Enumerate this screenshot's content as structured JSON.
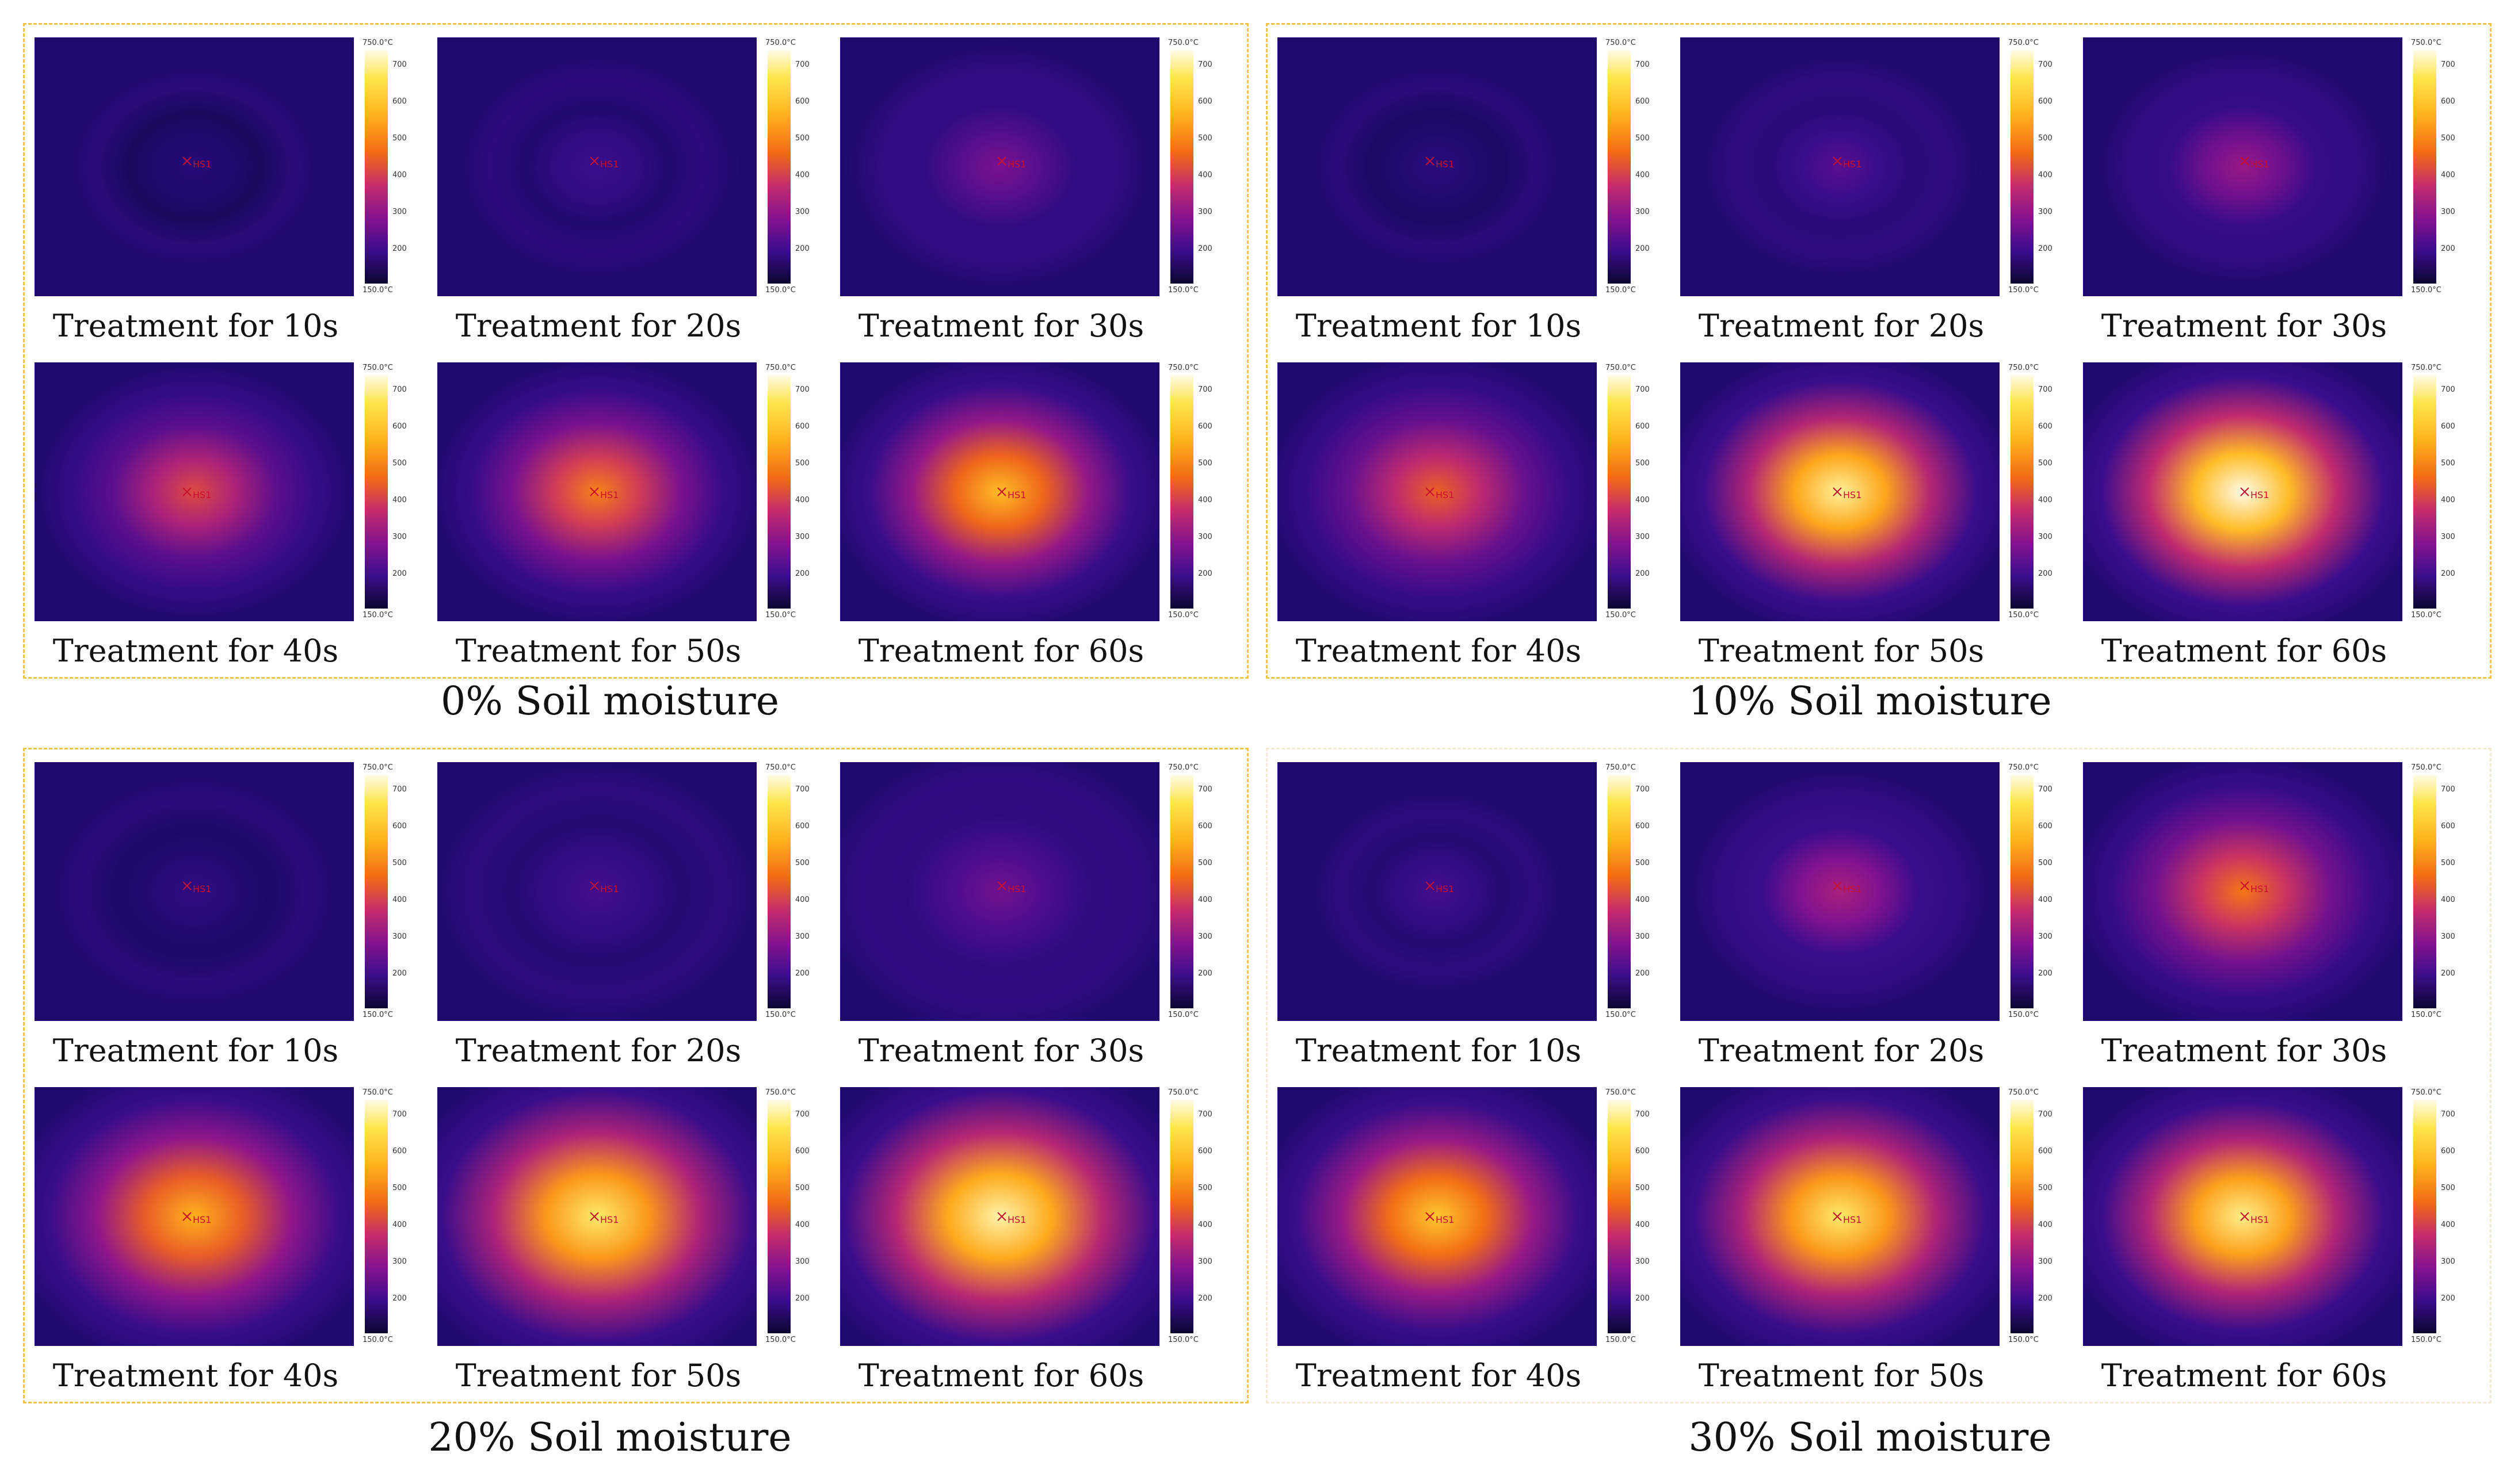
{
  "scale": {
    "top_label": "750.0°C",
    "bottom_label": "150.0°C",
    "ticks": [
      "700",
      "600",
      "500",
      "400",
      "300",
      "200"
    ]
  },
  "marker_label": "HS1",
  "groups": [
    {
      "title": "0% Soil moisture",
      "panels": [
        {
          "caption": "Treatment for 10s",
          "intensity": 0.18,
          "spread": 0.16
        },
        {
          "caption": "Treatment for 20s",
          "intensity": 0.28,
          "spread": 0.2
        },
        {
          "caption": "Treatment for 30s",
          "intensity": 0.4,
          "spread": 0.24
        },
        {
          "caption": "Treatment for 40s",
          "intensity": 0.62,
          "spread": 0.26
        },
        {
          "caption": "Treatment for 50s",
          "intensity": 0.72,
          "spread": 0.28
        },
        {
          "caption": "Treatment for 60s",
          "intensity": 0.82,
          "spread": 0.3
        }
      ]
    },
    {
      "title": "10% Soil moisture",
      "panels": [
        {
          "caption": "Treatment for 10s",
          "intensity": 0.2,
          "spread": 0.16
        },
        {
          "caption": "Treatment for 20s",
          "intensity": 0.34,
          "spread": 0.2
        },
        {
          "caption": "Treatment for 30s",
          "intensity": 0.46,
          "spread": 0.22
        },
        {
          "caption": "Treatment for 40s",
          "intensity": 0.66,
          "spread": 0.3
        },
        {
          "caption": "Treatment for 50s",
          "intensity": 0.95,
          "spread": 0.32
        },
        {
          "caption": "Treatment for 60s",
          "intensity": 1.0,
          "spread": 0.34
        }
      ]
    },
    {
      "title": "20% Soil moisture",
      "panels": [
        {
          "caption": "Treatment for 10s",
          "intensity": 0.22,
          "spread": 0.22
        },
        {
          "caption": "Treatment for 20s",
          "intensity": 0.3,
          "spread": 0.28
        },
        {
          "caption": "Treatment for 30s",
          "intensity": 0.38,
          "spread": 0.34
        },
        {
          "caption": "Treatment for 40s",
          "intensity": 0.8,
          "spread": 0.36
        },
        {
          "caption": "Treatment for 50s",
          "intensity": 0.92,
          "spread": 0.4
        },
        {
          "caption": "Treatment for 60s",
          "intensity": 0.96,
          "spread": 0.4
        }
      ]
    },
    {
      "title": "30% Soil moisture",
      "panels": [
        {
          "caption": "Treatment for 10s",
          "intensity": 0.3,
          "spread": 0.16
        },
        {
          "caption": "Treatment for 20s",
          "intensity": 0.5,
          "spread": 0.24
        },
        {
          "caption": "Treatment for 30s",
          "intensity": 0.7,
          "spread": 0.3
        },
        {
          "caption": "Treatment for 40s",
          "intensity": 0.84,
          "spread": 0.34
        },
        {
          "caption": "Treatment for 50s",
          "intensity": 0.92,
          "spread": 0.36
        },
        {
          "caption": "Treatment for 60s",
          "intensity": 0.94,
          "spread": 0.34
        }
      ]
    }
  ]
}
